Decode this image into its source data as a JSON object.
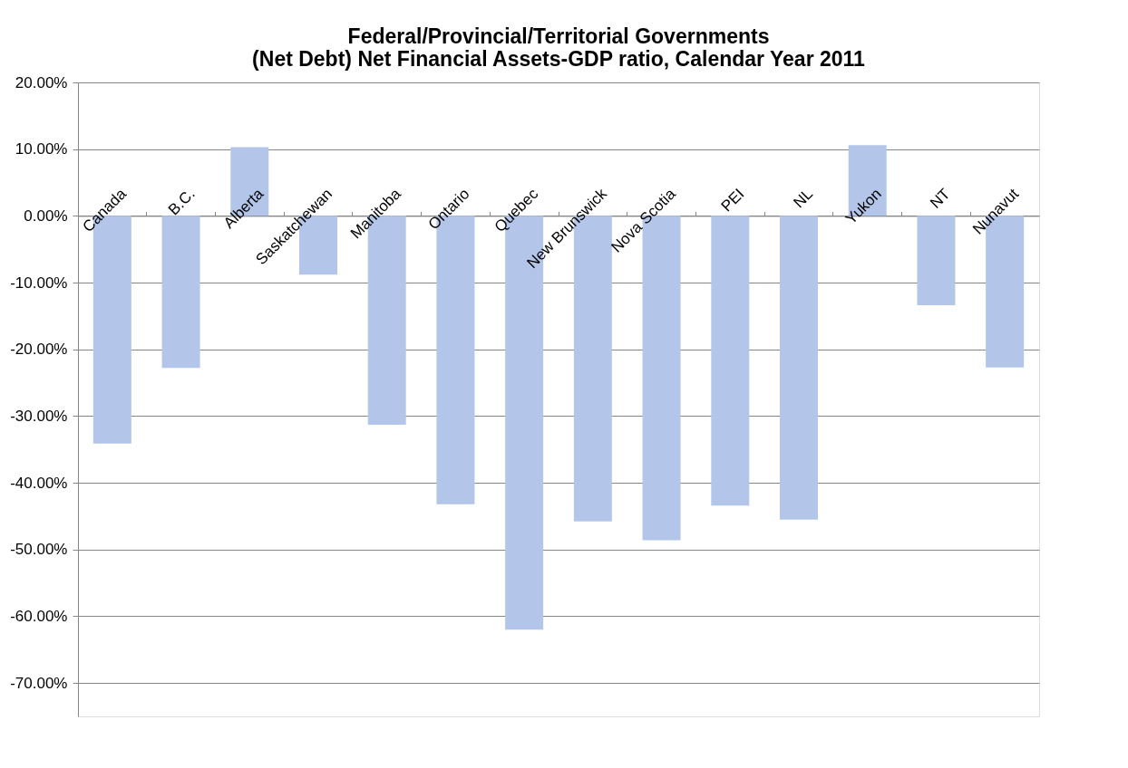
{
  "chart_data": {
    "type": "bar",
    "title": [
      "Federal/Provincial/Territorial Governments",
      "(Net Debt) Net Financial Assets-GDP ratio, Calendar Year 2011"
    ],
    "categories": [
      "Canada",
      "B.C.",
      "Alberta",
      "Saskatchewan",
      "Manitoba",
      "Ontario",
      "Quebec",
      "New Brunswick",
      "Nova Scotia",
      "PEI",
      "NL",
      "Yukon",
      "NT",
      "Nunavut"
    ],
    "values": [
      -34.1,
      -22.8,
      10.3,
      -8.8,
      -31.3,
      -43.2,
      -62.0,
      -45.8,
      -48.6,
      -43.4,
      -45.5,
      10.6,
      -13.4,
      -22.7
    ],
    "color": "#b3c6ea",
    "ylim": [
      -75,
      20
    ],
    "yticks": [
      {
        "value": 20,
        "label": "20.00%"
      },
      {
        "value": 10,
        "label": "10.00%"
      },
      {
        "value": 0,
        "label": "0.00%"
      },
      {
        "value": -10,
        "label": "-10.00%"
      },
      {
        "value": -20,
        "label": "-20.00%"
      },
      {
        "value": -30,
        "label": "-30.00%"
      },
      {
        "value": -40,
        "label": "-40.00%"
      },
      {
        "value": -50,
        "label": "-50.00%"
      },
      {
        "value": -60,
        "label": "-60.00%"
      },
      {
        "value": -70,
        "label": "-70.00%"
      }
    ],
    "grid": "y"
  }
}
